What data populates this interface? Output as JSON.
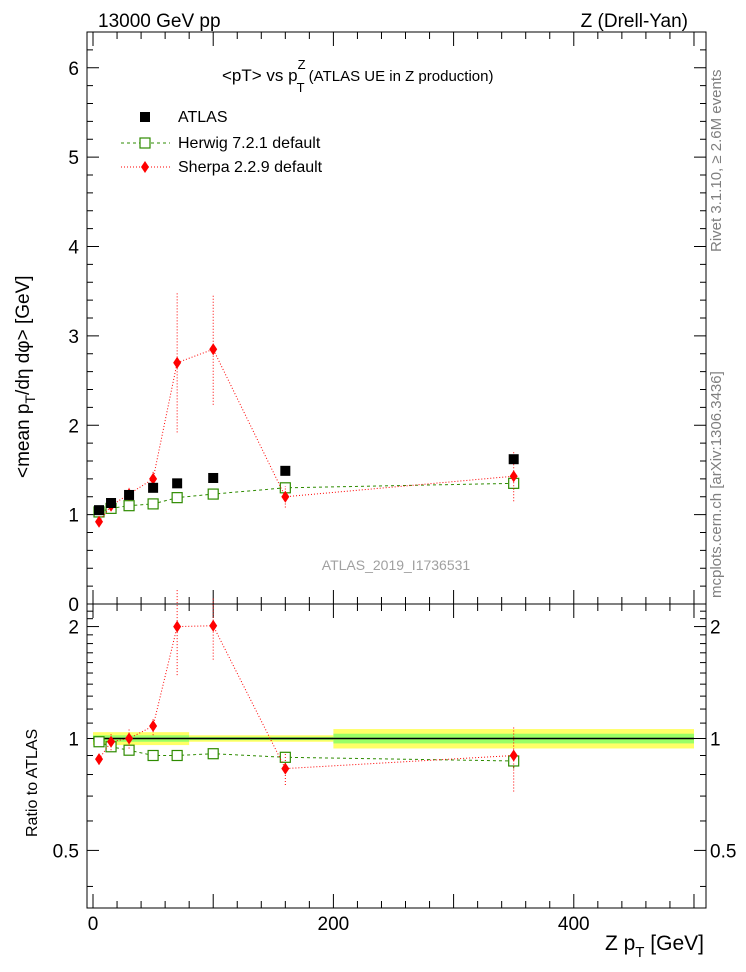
{
  "header": {
    "left": "13000 GeV pp",
    "right": "Z (Drell-Yan)"
  },
  "side_labels": {
    "rivet": "Rivet 3.1.10, ≥ 2.6M events",
    "mcplots": "mcplots.cern.ch [arXiv:1306.3436]"
  },
  "watermark": "ATLAS_2019_I1736531",
  "colors": {
    "atlas": "#000000",
    "herwig": "#2e8b00",
    "sherpa": "#ff0000",
    "band_outer": "#ffff66",
    "band_inner": "#99ff66"
  },
  "chart_data": [
    {
      "type": "scatter",
      "title": "<pT> vs p_T^Z (ATLAS UE in Z production)",
      "title_parts": {
        "pre": "<pT> vs p",
        "sup": "Z",
        "sub": "T",
        "post": " (ATLAS UE in Z production)"
      },
      "ylabel": "<mean p_T/dη dφ> [GeV]",
      "ylabel_parts": {
        "pre": "<mean p",
        "sub": "T",
        "post": "/dη dφ> [GeV]"
      },
      "xlim": [
        -5,
        510
      ],
      "ylim": [
        0,
        6.4
      ],
      "yticks": [
        0,
        1,
        2,
        3,
        4,
        5,
        6
      ],
      "ytick_labels": [
        "0",
        "1",
        "2",
        "3",
        "4",
        "5",
        "6"
      ],
      "legend_position": "top-left",
      "series": [
        {
          "name": "ATLAS",
          "marker": "square-filled",
          "x": [
            5,
            15,
            30,
            50,
            70,
            100,
            160,
            350
          ],
          "y": [
            1.05,
            1.13,
            1.22,
            1.3,
            1.35,
            1.41,
            1.49,
            1.62
          ],
          "yerr": [
            0.02,
            0.02,
            0.02,
            0.02,
            0.02,
            0.03,
            0.03,
            0.04
          ]
        },
        {
          "name": "Herwig 7.2.1 default",
          "marker": "square-open",
          "x": [
            5,
            15,
            30,
            50,
            70,
            100,
            160,
            350
          ],
          "y": [
            1.03,
            1.07,
            1.1,
            1.12,
            1.19,
            1.23,
            1.3,
            1.35
          ],
          "yerr": [
            0.01,
            0.02,
            0.02,
            0.03,
            0.03,
            0.04,
            0.05,
            0.07
          ]
        },
        {
          "name": "Sherpa 2.2.9 default",
          "marker": "diamond",
          "x": [
            5,
            15,
            30,
            50,
            70,
            100,
            160,
            350
          ],
          "y": [
            0.92,
            1.1,
            1.23,
            1.4,
            2.7,
            2.85,
            1.2,
            1.43
          ],
          "yerr": [
            0.03,
            0.05,
            0.07,
            0.1,
            0.78,
            0.62,
            0.12,
            0.28
          ]
        }
      ]
    },
    {
      "type": "scatter",
      "title": "",
      "xlabel": "Z p_T [GeV]",
      "xlabel_parts": {
        "pre": "Z p",
        "sub": "T",
        "post": " [GeV]"
      },
      "ylabel": "Ratio to ATLAS",
      "xlim": [
        -5,
        510
      ],
      "ylim": [
        0.35,
        2.3
      ],
      "xticks": [
        0,
        200,
        400
      ],
      "xtick_labels": [
        "0",
        "200",
        "400"
      ],
      "yticks": [
        0.5,
        1,
        2
      ],
      "ytick_labels": [
        "0.5",
        "1",
        "2"
      ],
      "reference_band": {
        "x_ranges": [
          [
            0,
            80
          ],
          [
            80,
            200
          ],
          [
            200,
            500
          ]
        ],
        "outer": [
          0.04,
          0.02,
          0.06
        ],
        "inner": [
          0.02,
          0.01,
          0.03
        ]
      },
      "series": [
        {
          "name": "Herwig 7.2.1 default",
          "marker": "square-open",
          "x": [
            5,
            15,
            30,
            50,
            70,
            100,
            160,
            350
          ],
          "y": [
            0.98,
            0.95,
            0.93,
            0.9,
            0.9,
            0.91,
            0.89,
            0.87
          ],
          "yerr": [
            0.02,
            0.02,
            0.02,
            0.02,
            0.02,
            0.02,
            0.03,
            0.04
          ]
        },
        {
          "name": "Sherpa 2.2.9 default",
          "marker": "diamond",
          "x": [
            5,
            15,
            30,
            50,
            70,
            100,
            160,
            350
          ],
          "y": [
            0.88,
            0.98,
            1.0,
            1.08,
            2.0,
            2.01,
            0.83,
            0.9
          ],
          "yerr": [
            0.03,
            0.05,
            0.06,
            0.06,
            0.52,
            0.38,
            0.08,
            0.18
          ]
        }
      ]
    }
  ]
}
